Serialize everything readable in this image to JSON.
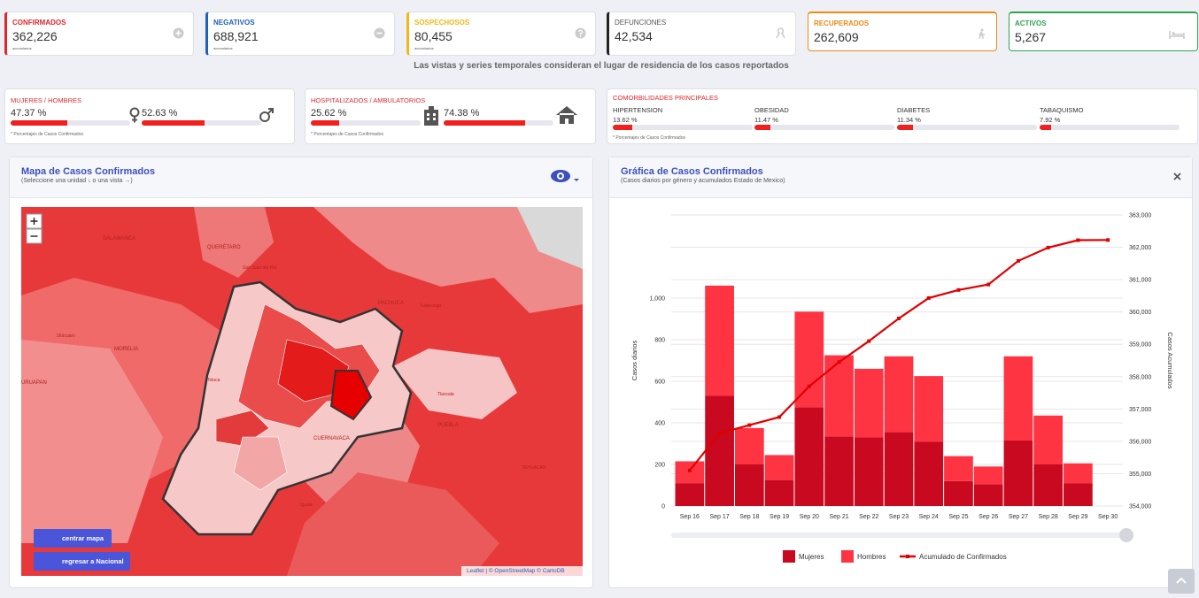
{
  "cards": [
    {
      "label": "CONFIRMADOS",
      "value": "362,226",
      "sub": "acumulados"
    },
    {
      "label": "NEGATIVOS",
      "value": "688,921",
      "sub": "acumulados"
    },
    {
      "label": "SOSPECHOSOS",
      "value": "80,455",
      "sub": "acumulados"
    },
    {
      "label": "DEFUNCIONES",
      "value": "42,534"
    },
    {
      "label": "RECUPERADOS",
      "value": "262,609"
    },
    {
      "label": "ACTIVOS",
      "value": "5,267"
    }
  ],
  "note": "Las vistas y series temporales consideran el lugar de residencia de los casos reportados",
  "gender": {
    "title": "MUJERES / HOMBRES",
    "items": [
      {
        "value": 47.37,
        "label": "47.37 %"
      },
      {
        "value": 52.63,
        "label": "52.63 %"
      }
    ],
    "footnote": "* Porcentajes de Casos Confirmados"
  },
  "hospital": {
    "title": "HOSPITALIZADOS / AMBULATORIOS",
    "items": [
      {
        "value": 25.62,
        "label": "25.62 %"
      },
      {
        "value": 74.38,
        "label": "74.38 %"
      }
    ],
    "footnote": "* Porcentajes de Casos Confirmados"
  },
  "comorbidities": {
    "title": "COMORBILIDADES PRINCIPALES",
    "items": [
      {
        "name": "HIPERTENSION",
        "value": 13.62,
        "label": "13.62 %"
      },
      {
        "name": "OBESIDAD",
        "value": 11.47,
        "label": "11.47 %"
      },
      {
        "name": "DIABETES",
        "value": 11.34,
        "label": "11.34 %"
      },
      {
        "name": "TABAQUISMO",
        "value": 7.92,
        "label": "7.92 %"
      }
    ],
    "footnote": "* Porcentajes de Casos Confirmados"
  },
  "map": {
    "title": "Mapa de Casos Confirmados",
    "subtitle": "(Seleccione una unidad ↓ o una vista →)",
    "labels": [
      "QUERÉTARO",
      "SALAMANCA",
      "MORELIA",
      "PACHUCA",
      "Tulancingo",
      "Tlaxcala",
      "PUEBLA",
      "CUERNAVACA",
      "Iguala",
      "TEHUACÁN",
      "URUAPAN",
      "Zitácuaro",
      "San Juan del Río",
      "Toluca"
    ],
    "buttons": [
      "centrar mapa",
      "regresar a Nacional"
    ],
    "attribution": "Leaflet | © OpenStreetMap © CartoDB"
  },
  "chart_panel": {
    "title": "Gráfica de Casos Confirmados",
    "subtitle": "(Casos diarios por género y acumulados Estado de Mexico)"
  },
  "chart_data": {
    "type": "bar",
    "stacked": true,
    "categories": [
      "Sep 16",
      "Sep 17",
      "Sep 18",
      "Sep 19",
      "Sep 20",
      "Sep 21",
      "Sep 22",
      "Sep 23",
      "Sep 24",
      "Sep 25",
      "Sep 26",
      "Sep 27",
      "Sep 28",
      "Sep 29",
      "Sep 30"
    ],
    "series": [
      {
        "name": "Mujeres",
        "color": "#c9091f",
        "values": [
          110,
          530,
          200,
          125,
          475,
          335,
          330,
          355,
          310,
          120,
          105,
          315,
          200,
          110,
          null
        ]
      },
      {
        "name": "Hombres",
        "color": "#ff3443",
        "values": [
          105,
          530,
          175,
          120,
          460,
          390,
          330,
          365,
          315,
          120,
          85,
          405,
          235,
          95,
          null
        ]
      },
      {
        "name": "Acumulado de Confirmados",
        "color": "#e00000",
        "type": "line",
        "axis": "y2",
        "values": [
          355100,
          356250,
          356500,
          356750,
          357700,
          358450,
          359100,
          359800,
          360430,
          360680,
          360850,
          361580,
          361990,
          362220,
          362226
        ]
      }
    ],
    "ylabel": "Casos diarios",
    "y2label": "Casos Acumulados",
    "ylim": [
      0,
      1400
    ],
    "yticks": [
      0,
      200,
      400,
      600,
      800,
      {
        "value": 1000,
        "label": "1,000"
      }
    ],
    "y2lim": [
      354000,
      363000
    ],
    "y2ticks": [
      {
        "value": 354000,
        "label": "354,000"
      },
      {
        "value": 355000,
        "label": "355,000"
      },
      {
        "value": 356000,
        "label": "356,000"
      },
      {
        "value": 357000,
        "label": "357,000"
      },
      {
        "value": 358000,
        "label": "358,000"
      },
      {
        "value": 359000,
        "label": "359,000"
      },
      {
        "value": 360000,
        "label": "360,000"
      },
      {
        "value": 361000,
        "label": "361,000"
      },
      {
        "value": 362000,
        "label": "362,000"
      },
      {
        "value": 363000,
        "label": "363,000"
      }
    ],
    "grid": true,
    "legend": "bottom"
  }
}
